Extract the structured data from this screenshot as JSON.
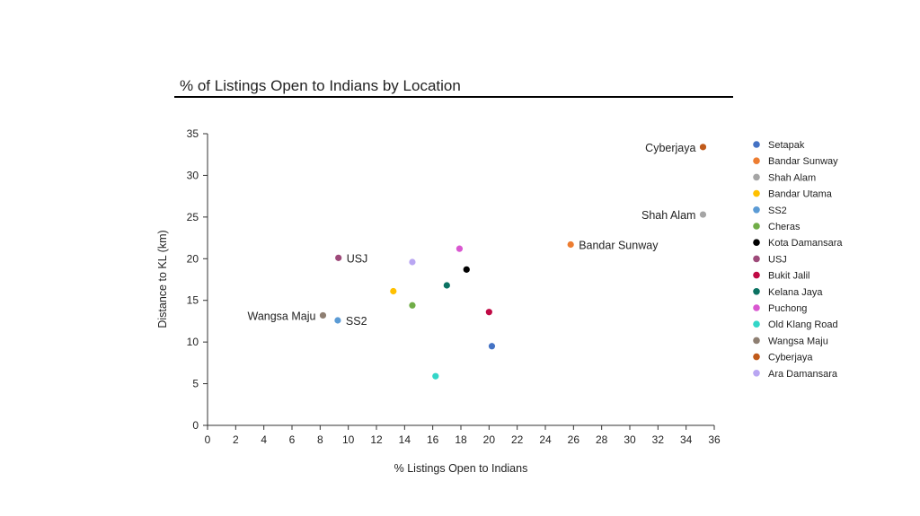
{
  "chart_data": {
    "type": "scatter",
    "title": "% of Listings Open to Indians by Location",
    "xlabel": "% Listings Open to Indians",
    "ylabel": "Distance to KL (km)",
    "xlim": [
      0,
      36
    ],
    "ylim": [
      0,
      35
    ],
    "xticks": [
      0,
      2,
      4,
      6,
      8,
      10,
      12,
      14,
      16,
      18,
      20,
      22,
      24,
      26,
      28,
      30,
      32,
      34,
      36
    ],
    "yticks": [
      0,
      5,
      10,
      15,
      20,
      25,
      30,
      35
    ],
    "grid": false,
    "legend_placement": "right",
    "series": [
      {
        "name": "Setapak",
        "color": "#4472C4",
        "x": 20.2,
        "y": 9.5
      },
      {
        "name": "Bandar Sunway",
        "color": "#ED7D31",
        "x": 25.8,
        "y": 21.7,
        "label": "Bandar Sunway",
        "label_side": "right"
      },
      {
        "name": "Shah Alam",
        "color": "#A5A5A5",
        "x": 35.2,
        "y": 25.3,
        "label": "Shah Alam",
        "label_side": "left"
      },
      {
        "name": "Bandar Utama",
        "color": "#FFC000",
        "x": 13.2,
        "y": 16.1
      },
      {
        "name": "SS2",
        "color": "#5B9BD5",
        "x": 9.25,
        "y": 12.6,
        "label": "SS2",
        "label_side": "right"
      },
      {
        "name": "Cheras",
        "color": "#70AD47",
        "x": 14.55,
        "y": 14.4
      },
      {
        "name": "Kota Damansara",
        "color": "#000000",
        "x": 18.4,
        "y": 18.7
      },
      {
        "name": "USJ",
        "color": "#9E4A7A",
        "x": 9.3,
        "y": 20.1,
        "label": "USJ",
        "label_side": "right"
      },
      {
        "name": "Bukit Jalil",
        "color": "#C00A45",
        "x": 20.0,
        "y": 13.6
      },
      {
        "name": "Kelana Jaya",
        "color": "#0B7262",
        "x": 17.0,
        "y": 16.8
      },
      {
        "name": "Puchong",
        "color": "#D957D0",
        "x": 17.9,
        "y": 21.2
      },
      {
        "name": "Old Klang Road",
        "color": "#33D6C8",
        "x": 16.2,
        "y": 5.9
      },
      {
        "name": "Wangsa Maju",
        "color": "#8E7F72",
        "x": 8.2,
        "y": 13.2,
        "label": "Wangsa Maju",
        "label_side": "left"
      },
      {
        "name": "Cyberjaya",
        "color": "#C05A1A",
        "x": 35.2,
        "y": 33.4,
        "label": "Cyberjaya",
        "label_side": "left"
      },
      {
        "name": "Ara Damansara",
        "color": "#B9A6F2",
        "x": 14.55,
        "y": 19.6
      }
    ]
  }
}
